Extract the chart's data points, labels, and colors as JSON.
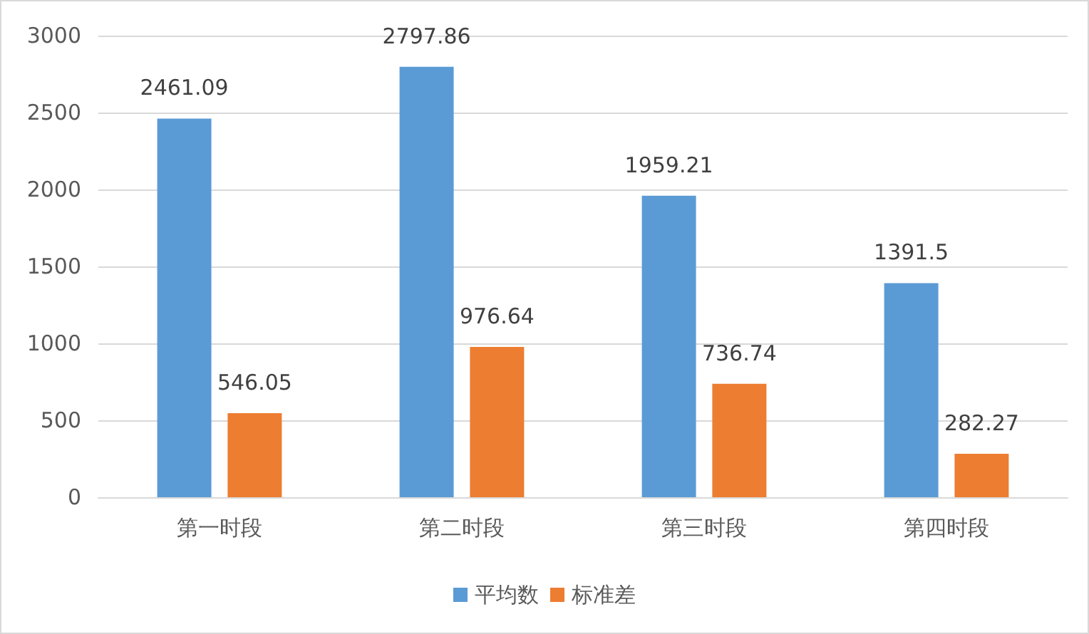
{
  "chart_data": {
    "type": "bar",
    "categories": [
      "第一时段",
      "第二时段",
      "第三时段",
      "第四时段"
    ],
    "series": [
      {
        "name": "平均数",
        "color": "#5b9bd5",
        "values": [
          2461.09,
          2797.86,
          1959.21,
          1391.5
        ]
      },
      {
        "name": "标准差",
        "color": "#ed7d31",
        "values": [
          546.05,
          976.64,
          736.74,
          282.27
        ]
      }
    ],
    "ylim": [
      0,
      3000
    ],
    "yticks": [
      0,
      500,
      1000,
      1500,
      2000,
      2500,
      3000
    ],
    "grid": "y",
    "legend": "bottom",
    "data_labels": true
  }
}
